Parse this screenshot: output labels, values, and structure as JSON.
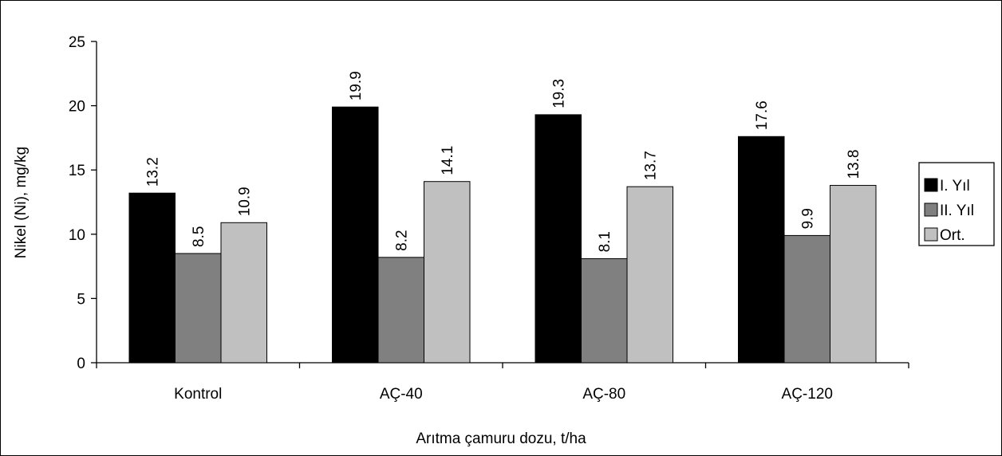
{
  "chart_data": {
    "type": "bar",
    "title": "",
    "xlabel": "Arıtma çamuru dozu, t/ha",
    "ylabel": "Nikel (Ni), mg/kg",
    "ylim": [
      0,
      25
    ],
    "yticks": [
      "0",
      "5",
      "10",
      "15",
      "20",
      "25"
    ],
    "categories": [
      "Kontrol",
      "AÇ-40",
      "AÇ-80",
      "AÇ-120"
    ],
    "series": [
      {
        "name": "I. Yıl",
        "color": "#000000",
        "values": [
          13.2,
          19.9,
          19.3,
          17.6
        ],
        "labels": [
          "13.2",
          "19.9",
          "19.3",
          "17.6"
        ]
      },
      {
        "name": "II. Yıl",
        "color": "#808080",
        "values": [
          8.5,
          8.2,
          8.1,
          9.9
        ],
        "labels": [
          "8.5",
          "8.2",
          "8.1",
          "9.9"
        ]
      },
      {
        "name": "Ort.",
        "color": "#c0c0c0",
        "values": [
          10.9,
          14.1,
          13.7,
          13.8
        ],
        "labels": [
          "10.9",
          "14.1",
          "13.7",
          "13.8"
        ]
      }
    ],
    "grid": false,
    "legend_position": "right"
  }
}
